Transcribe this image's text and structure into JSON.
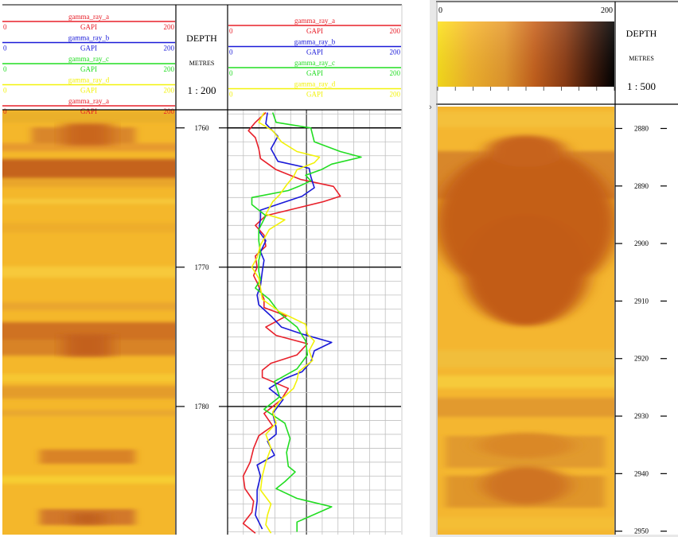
{
  "colors": {
    "red": "#e8202a",
    "blue": "#1a1ad8",
    "green": "#22dd22",
    "yellow": "#f2f20a",
    "grid": "#c0c0c0",
    "gridMajor": "#000000"
  },
  "left_panel": {
    "headers": [
      {
        "name": "gamma_ray_a",
        "unit": "GAPI",
        "min": "0",
        "max": "200",
        "color": "#e8202a"
      },
      {
        "name": "gamma_ray_b",
        "unit": "GAPI",
        "min": "0",
        "max": "200",
        "color": "#1a1ad8"
      },
      {
        "name": "gamma_ray_c",
        "unit": "GAPI",
        "min": "0",
        "max": "200",
        "color": "#22dd22"
      },
      {
        "name": "gamma_ray_d",
        "unit": "GAPI",
        "min": "0",
        "max": "200",
        "color": "#f2f20a"
      },
      {
        "name": "gamma_ray_a",
        "unit": "GAPI",
        "min": "0",
        "max": "200",
        "color": "#e8202a"
      }
    ],
    "depth": {
      "title": "DEPTH",
      "unit": "METRES",
      "scale": "1 : 200",
      "ticks": [
        "1760",
        "1770",
        "1780"
      ]
    },
    "curve_headers": [
      {
        "name": "gamma_ray_a",
        "unit": "GAPI",
        "min": "0",
        "max": "200",
        "color": "#e8202a"
      },
      {
        "name": "gamma_ray_b",
        "unit": "GAPI",
        "min": "0",
        "max": "200",
        "color": "#1a1ad8"
      },
      {
        "name": "gamma_ray_c",
        "unit": "GAPI",
        "min": "0",
        "max": "200",
        "color": "#22dd22"
      },
      {
        "name": "gamma_ray_d",
        "unit": "GAPI",
        "min": "0",
        "max": "200",
        "color": "#f2f20a"
      }
    ]
  },
  "right_panel": {
    "colorbar": {
      "min": "0",
      "max": "200"
    },
    "depth": {
      "title": "DEPTH",
      "unit": "METRES",
      "scale": "1 : 500",
      "ticks": [
        "2880",
        "2890",
        "2900",
        "2910",
        "2920",
        "2930",
        "2940",
        "2950"
      ]
    }
  },
  "chart_data": [
    {
      "type": "line",
      "xlim": [
        0,
        200
      ],
      "ylim": [
        1758.7,
        1789.2
      ],
      "ylabel": "DEPTH",
      "series": [
        {
          "name": "gamma_ray_a",
          "color": "#e8202a",
          "depth": [
            1758.9,
            1759.6,
            1760.2,
            1760.7,
            1761.5,
            1762.2,
            1763,
            1763.7,
            1764.2,
            1764.9,
            1765.3,
            1766.3,
            1767,
            1767.7,
            1768.5,
            1769.2,
            1770,
            1770.6,
            1771.1,
            1772.3,
            1772.9,
            1773.5,
            1774.3,
            1774.9,
            1775.5,
            1776.3,
            1776.9,
            1777.4,
            1777.9,
            1778.7,
            1779.5,
            1780.5,
            1781.4,
            1782.1,
            1783,
            1784,
            1785,
            1785.9,
            1786.8,
            1787.6,
            1788.4,
            1789.1
          ],
          "x": [
            44,
            32,
            24,
            32,
            36,
            38,
            56,
            84,
            122,
            130,
            110,
            44,
            32,
            42,
            44,
            32,
            34,
            30,
            34,
            42,
            42,
            68,
            44,
            56,
            92,
            80,
            50,
            40,
            40,
            70,
            62,
            42,
            52,
            36,
            30,
            26,
            18,
            20,
            30,
            28,
            18,
            32
          ]
        },
        {
          "name": "gamma_ray_b",
          "color": "#1a1ad8",
          "depth": [
            1758.9,
            1759.7,
            1760.6,
            1761.5,
            1762.4,
            1762.9,
            1763.5,
            1764.3,
            1764.9,
            1765.9,
            1766.5,
            1767.4,
            1768.1,
            1768.9,
            1769.5,
            1770.3,
            1771.3,
            1772,
            1772.7,
            1773.5,
            1774.3,
            1774.8,
            1775.4,
            1776,
            1776.8,
            1777.5,
            1778,
            1778.7,
            1779.5,
            1780.5,
            1781.5,
            1782,
            1782.5,
            1783.5,
            1784.2,
            1785,
            1786,
            1786.8,
            1787.8,
            1788.8
          ],
          "x": [
            46,
            44,
            58,
            50,
            58,
            94,
            96,
            100,
            86,
            38,
            38,
            36,
            44,
            38,
            42,
            40,
            38,
            34,
            36,
            50,
            62,
            86,
            120,
            100,
            96,
            86,
            66,
            48,
            64,
            52,
            56,
            56,
            46,
            54,
            34,
            38,
            34,
            34,
            32,
            40
          ]
        },
        {
          "name": "gamma_ray_c",
          "color": "#22dd22",
          "depth": [
            1758.9,
            1759.6,
            1760,
            1761,
            1761.7,
            1762.1,
            1762.6,
            1763,
            1763.4,
            1763.8,
            1764.2,
            1764.5,
            1765,
            1765.5,
            1766.3,
            1767.3,
            1768.1,
            1769,
            1769.5,
            1770.3,
            1770.9,
            1771.5,
            1772.3,
            1773.3,
            1774.3,
            1775.3,
            1776.3,
            1777.3,
            1778.2,
            1779.3,
            1780.2,
            1781.2,
            1782.3,
            1783.3,
            1784.3,
            1784.7,
            1785.4,
            1785.9,
            1786.6,
            1787.2,
            1788.3,
            1789
          ],
          "x": [
            52,
            56,
            96,
            100,
            130,
            154,
            120,
            108,
            90,
            96,
            82,
            70,
            28,
            28,
            44,
            36,
            36,
            38,
            36,
            36,
            38,
            32,
            48,
            60,
            80,
            90,
            92,
            80,
            54,
            60,
            42,
            66,
            72,
            68,
            70,
            78,
            66,
            56,
            80,
            120,
            80,
            80
          ]
        },
        {
          "name": "gamma_ray_d",
          "color": "#f2f20a",
          "depth": [
            1758.9,
            1759.6,
            1760.2,
            1761,
            1761.7,
            1762.1,
            1762.5,
            1763,
            1763.5,
            1764.1,
            1764.8,
            1765.3,
            1766.2,
            1766.6,
            1767.3,
            1768.4,
            1769.3,
            1770,
            1770.8,
            1771.5,
            1772.3,
            1773.2,
            1774.1,
            1774.8,
            1775.3,
            1776,
            1776.7,
            1777.5,
            1778.1,
            1778.7,
            1779.6,
            1780.4,
            1781.2,
            1782,
            1783,
            1784,
            1785,
            1786,
            1787,
            1787.8,
            1788.5,
            1789.1
          ],
          "x": [
            42,
            36,
            52,
            62,
            80,
            106,
            100,
            80,
            76,
            68,
            60,
            52,
            44,
            66,
            48,
            38,
            34,
            28,
            36,
            38,
            40,
            60,
            90,
            92,
            100,
            94,
            98,
            82,
            80,
            76,
            60,
            52,
            56,
            44,
            50,
            44,
            40,
            38,
            50,
            46,
            44,
            50
          ]
        }
      ]
    },
    {
      "type": "heatmap",
      "colorbar": {
        "min": 0,
        "max": 200
      },
      "ylim": [
        2876.2,
        2950.6
      ]
    }
  ]
}
